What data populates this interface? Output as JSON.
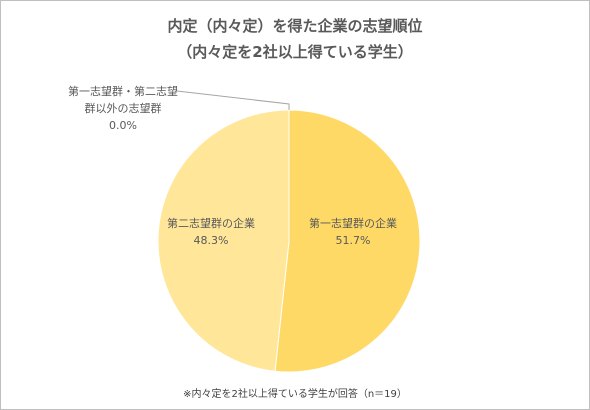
{
  "chart_data": {
    "type": "pie",
    "title": "内定（内々定）を得た企業の志望順位",
    "subtitle": "（内々定を2社以上得ている学生）",
    "categories": [
      "第一志望群の企業",
      "第二志望群の企業",
      "第一志望群・第二志望群以外の志望群"
    ],
    "values": [
      51.7,
      48.3,
      0.0
    ],
    "value_labels": [
      "51.7%",
      "48.3%",
      "0.0%"
    ],
    "colors": [
      "#FFD966",
      "#FFE699",
      "#F4B183"
    ],
    "annotation": "※内々定を2社以上得ている学生が回答（n＝19）"
  }
}
